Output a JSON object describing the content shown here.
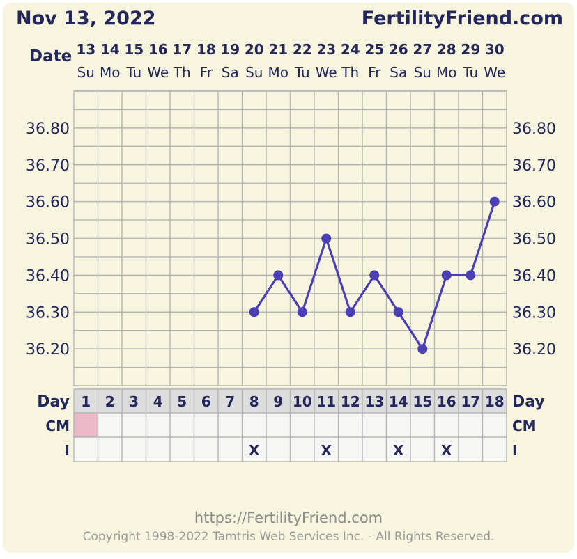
{
  "header": {
    "date": "Nov 13, 2022",
    "site": "FertilityFriend.com",
    "date_label": "Date"
  },
  "chart_data": {
    "type": "line",
    "dates": [
      "13",
      "14",
      "15",
      "16",
      "17",
      "18",
      "19",
      "20",
      "21",
      "22",
      "23",
      "24",
      "25",
      "26",
      "27",
      "28",
      "29",
      "30"
    ],
    "weekdays": [
      "Su",
      "Mo",
      "Tu",
      "We",
      "Th",
      "Fr",
      "Sa",
      "Su",
      "Mo",
      "Tu",
      "We",
      "Th",
      "Fr",
      "Sa",
      "Su",
      "Mo",
      "Tu",
      "We"
    ],
    "cycle_days": [
      "1",
      "2",
      "3",
      "4",
      "5",
      "6",
      "7",
      "8",
      "9",
      "10",
      "11",
      "12",
      "13",
      "14",
      "15",
      "16",
      "17",
      "18"
    ],
    "y_ticks": [
      "36.80",
      "36.70",
      "36.60",
      "36.50",
      "36.40",
      "36.30",
      "36.20"
    ],
    "ylim": [
      36.1,
      36.9
    ],
    "series": [
      {
        "values": [
          null,
          null,
          null,
          null,
          null,
          null,
          null,
          36.3,
          36.4,
          36.3,
          36.5,
          36.3,
          36.4,
          36.3,
          36.2,
          36.4,
          36.4,
          36.6
        ]
      }
    ],
    "grid": true,
    "rows": {
      "day_label": "Day",
      "cm_label": "CM",
      "i_label": "I",
      "cm": [
        "pink",
        "",
        "",
        "",
        "",
        "",
        "",
        "",
        "",
        "",
        "",
        "",
        "",
        "",
        "",
        "",
        "",
        ""
      ],
      "i": [
        "",
        "",
        "",
        "",
        "",
        "",
        "",
        "X",
        "",
        "",
        "X",
        "",
        "",
        "X",
        "",
        "X",
        "",
        ""
      ]
    },
    "colors": {
      "line": "#4a3fb5",
      "grid": "#b5b5b5",
      "axis_text": "#23275a",
      "cm_pink": "#ebb9c7",
      "day_row": "#dcdcdc",
      "table_bg": "#f6f6f4"
    }
  },
  "footer": {
    "url": "https://FertilityFriend.com",
    "copyright": "Copyright 1998-2022 Tamtris Web Services Inc. - All Rights Reserved."
  }
}
